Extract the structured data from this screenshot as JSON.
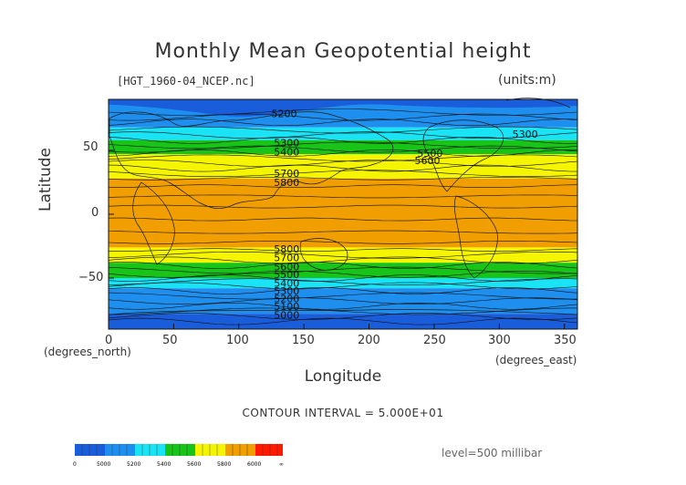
{
  "title": "Monthly Mean Geopotential height",
  "file_label": "[HGT_1960-04_NCEP.nc]",
  "units_label": "(units:m)",
  "y_axis_label": "Latitude",
  "x_axis_label": "Longitude",
  "x_unit_note": "(degrees_east)",
  "y_unit_note": "(degrees_north)",
  "x_ticks": [
    "0",
    "50",
    "100",
    "150",
    "200",
    "250",
    "300",
    "350"
  ],
  "y_ticks": [
    "50",
    "0",
    "−50"
  ],
  "contour_interval": "CONTOUR INTERVAL = 5.000E+01",
  "level": "level=500 millibar",
  "colorbar_ticks": [
    "0",
    "5000",
    "5200",
    "5400",
    "5600",
    "5800",
    "6000",
    "∞"
  ],
  "colors": {
    "band_4900": "#1a5ddb",
    "band_5100": "#1e8fee",
    "band_5300": "#19e3f5",
    "band_5500": "#18c418",
    "band_5700": "#f5f500",
    "band_5900": "#f09e00",
    "band_6100": "#ff1a00"
  },
  "contour_labels": [
    {
      "text": "5200",
      "lon": 125,
      "lat": 79
    },
    {
      "text": "5300",
      "lon": 127,
      "lat": 56
    },
    {
      "text": "5400",
      "lon": 127,
      "lat": 49
    },
    {
      "text": "5500",
      "lon": 237,
      "lat": 48
    },
    {
      "text": "5600",
      "lon": 235,
      "lat": 42
    },
    {
      "text": "5300",
      "lon": 310,
      "lat": 63
    },
    {
      "text": "5700",
      "lon": 127,
      "lat": 32
    },
    {
      "text": "5800",
      "lon": 127,
      "lat": 25
    },
    {
      "text": "5800",
      "lon": 127,
      "lat": -27
    },
    {
      "text": "5700",
      "lon": 127,
      "lat": -34
    },
    {
      "text": "5600",
      "lon": 127,
      "lat": -41
    },
    {
      "text": "5500",
      "lon": 127,
      "lat": -47
    },
    {
      "text": "5400",
      "lon": 127,
      "lat": -54
    },
    {
      "text": "5300",
      "lon": 127,
      "lat": -60
    },
    {
      "text": "5200",
      "lon": 127,
      "lat": -66
    },
    {
      "text": "5100",
      "lon": 127,
      "lat": -72
    },
    {
      "text": "5000",
      "lon": 127,
      "lat": -79
    }
  ]
}
